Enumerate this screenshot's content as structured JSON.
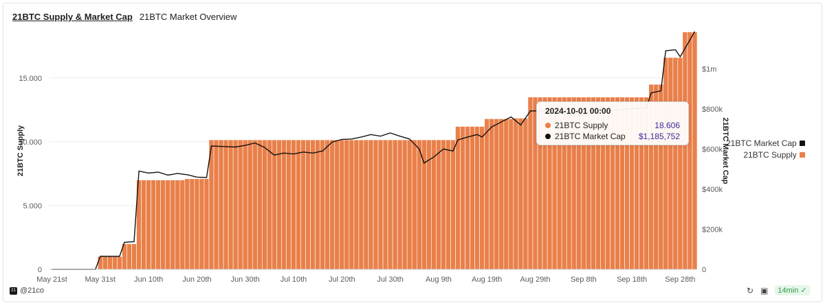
{
  "tabs": [
    {
      "label": "21BTC Supply & Market Cap",
      "active": true
    },
    {
      "label": "21BTC Market Overview",
      "active": false
    }
  ],
  "colors": {
    "supply": "#e9804a",
    "supply_border": "#ffffff",
    "market_cap": "#111111",
    "grid": "#ebebeb"
  },
  "chart_data": {
    "type": "bar",
    "title": "21BTC Supply & Market Cap",
    "x_axis": {
      "tick_labels": [
        "May 21st",
        "May 31st",
        "Jun 10th",
        "Jun 20th",
        "Jun 30th",
        "Jul 10th",
        "Jul 20th",
        "Jul 30th",
        "Aug 9th",
        "Aug 19th",
        "Aug 29th",
        "Sep 8th",
        "Sep 18th",
        "Sep 28th"
      ],
      "start": "2024-05-21",
      "end": "2024-10-01"
    },
    "y_left": {
      "label": "21BTC Supply",
      "ticks": [
        "0",
        "5.000",
        "10.000",
        "15.000"
      ],
      "range": [
        0,
        19500
      ]
    },
    "y_right": {
      "label": "21BTC Market Cap",
      "ticks": [
        "0",
        "$200k",
        "$400k",
        "$600k",
        "$800k",
        "$1m"
      ],
      "range": [
        0,
        1185752
      ]
    },
    "supply_steps": [
      {
        "from": "2024-05-21",
        "to": "2024-05-30",
        "value": 0
      },
      {
        "from": "2024-05-31",
        "to": "2024-06-04",
        "value": 1000
      },
      {
        "from": "2024-06-05",
        "to": "2024-06-07",
        "value": 2000
      },
      {
        "from": "2024-06-08",
        "to": "2024-06-17",
        "value": 7000
      },
      {
        "from": "2024-06-18",
        "to": "2024-06-22",
        "value": 7100
      },
      {
        "from": "2024-06-23",
        "to": "2024-08-12",
        "value": 10150
      },
      {
        "from": "2024-08-13",
        "to": "2024-08-18",
        "value": 11200
      },
      {
        "from": "2024-08-19",
        "to": "2024-08-24",
        "value": 11800
      },
      {
        "from": "2024-08-25",
        "to": "2024-08-27",
        "value": 11850
      },
      {
        "from": "2024-08-28",
        "to": "2024-09-21",
        "value": 13500
      },
      {
        "from": "2024-09-22",
        "to": "2024-09-24",
        "value": 14500
      },
      {
        "from": "2024-09-25",
        "to": "2024-09-28",
        "value": 16600
      },
      {
        "from": "2024-09-29",
        "to": "2024-10-01",
        "value": 18606
      }
    ],
    "market_cap_points": [
      [
        "2024-05-21",
        0
      ],
      [
        "2024-05-30",
        0
      ],
      [
        "2024-05-31",
        65000
      ],
      [
        "2024-06-04",
        65000
      ],
      [
        "2024-06-05",
        135000
      ],
      [
        "2024-06-07",
        138000
      ],
      [
        "2024-06-08",
        490000
      ],
      [
        "2024-06-10",
        480000
      ],
      [
        "2024-06-12",
        485000
      ],
      [
        "2024-06-14",
        470000
      ],
      [
        "2024-06-16",
        478000
      ],
      [
        "2024-06-18",
        472000
      ],
      [
        "2024-06-20",
        460000
      ],
      [
        "2024-06-22",
        458000
      ],
      [
        "2024-06-23",
        615000
      ],
      [
        "2024-06-26",
        612000
      ],
      [
        "2024-06-28",
        610000
      ],
      [
        "2024-06-30",
        618000
      ],
      [
        "2024-07-02",
        630000
      ],
      [
        "2024-07-04",
        608000
      ],
      [
        "2024-07-06",
        570000
      ],
      [
        "2024-07-08",
        580000
      ],
      [
        "2024-07-10",
        575000
      ],
      [
        "2024-07-12",
        585000
      ],
      [
        "2024-07-14",
        580000
      ],
      [
        "2024-07-16",
        590000
      ],
      [
        "2024-07-18",
        635000
      ],
      [
        "2024-07-20",
        648000
      ],
      [
        "2024-07-22",
        650000
      ],
      [
        "2024-07-24",
        660000
      ],
      [
        "2024-07-26",
        672000
      ],
      [
        "2024-07-28",
        664000
      ],
      [
        "2024-07-30",
        680000
      ],
      [
        "2024-08-01",
        664000
      ],
      [
        "2024-08-03",
        650000
      ],
      [
        "2024-08-05",
        600000
      ],
      [
        "2024-08-06",
        530000
      ],
      [
        "2024-08-08",
        560000
      ],
      [
        "2024-08-10",
        600000
      ],
      [
        "2024-08-12",
        590000
      ],
      [
        "2024-08-13",
        645000
      ],
      [
        "2024-08-15",
        660000
      ],
      [
        "2024-08-17",
        672000
      ],
      [
        "2024-08-18",
        660000
      ],
      [
        "2024-08-20",
        710000
      ],
      [
        "2024-08-22",
        735000
      ],
      [
        "2024-08-24",
        760000
      ],
      [
        "2024-08-26",
        720000
      ],
      [
        "2024-08-28",
        790000
      ],
      [
        "2024-08-30",
        790000
      ],
      [
        "2024-09-01",
        780000
      ],
      [
        "2024-09-05",
        770000
      ],
      [
        "2024-09-09",
        775000
      ],
      [
        "2024-09-13",
        790000
      ],
      [
        "2024-09-17",
        800000
      ],
      [
        "2024-09-21",
        805000
      ],
      [
        "2024-09-22",
        880000
      ],
      [
        "2024-09-24",
        890000
      ],
      [
        "2024-09-25",
        1090000
      ],
      [
        "2024-09-27",
        1095000
      ],
      [
        "2024-09-28",
        1060000
      ],
      [
        "2024-10-01",
        1185752
      ]
    ],
    "legend": {
      "placement": "right",
      "items": [
        {
          "name": "21BTC Market Cap",
          "color": "#111111"
        },
        {
          "name": "21BTC Supply",
          "color": "#e9804a"
        }
      ]
    },
    "tooltip": {
      "title": "2024-10-01 00:00",
      "rows": [
        {
          "name": "21BTC Supply",
          "value": "18.606",
          "color": "#e9804a"
        },
        {
          "name": "21BTC Market Cap",
          "value": "$1,185,752",
          "color": "#111111"
        }
      ]
    },
    "grid": true
  },
  "footer": {
    "handle": "@21co",
    "logo_text": "21",
    "refresh": "14min",
    "icons": [
      "refresh-icon",
      "camera-icon",
      "check-icon"
    ]
  }
}
